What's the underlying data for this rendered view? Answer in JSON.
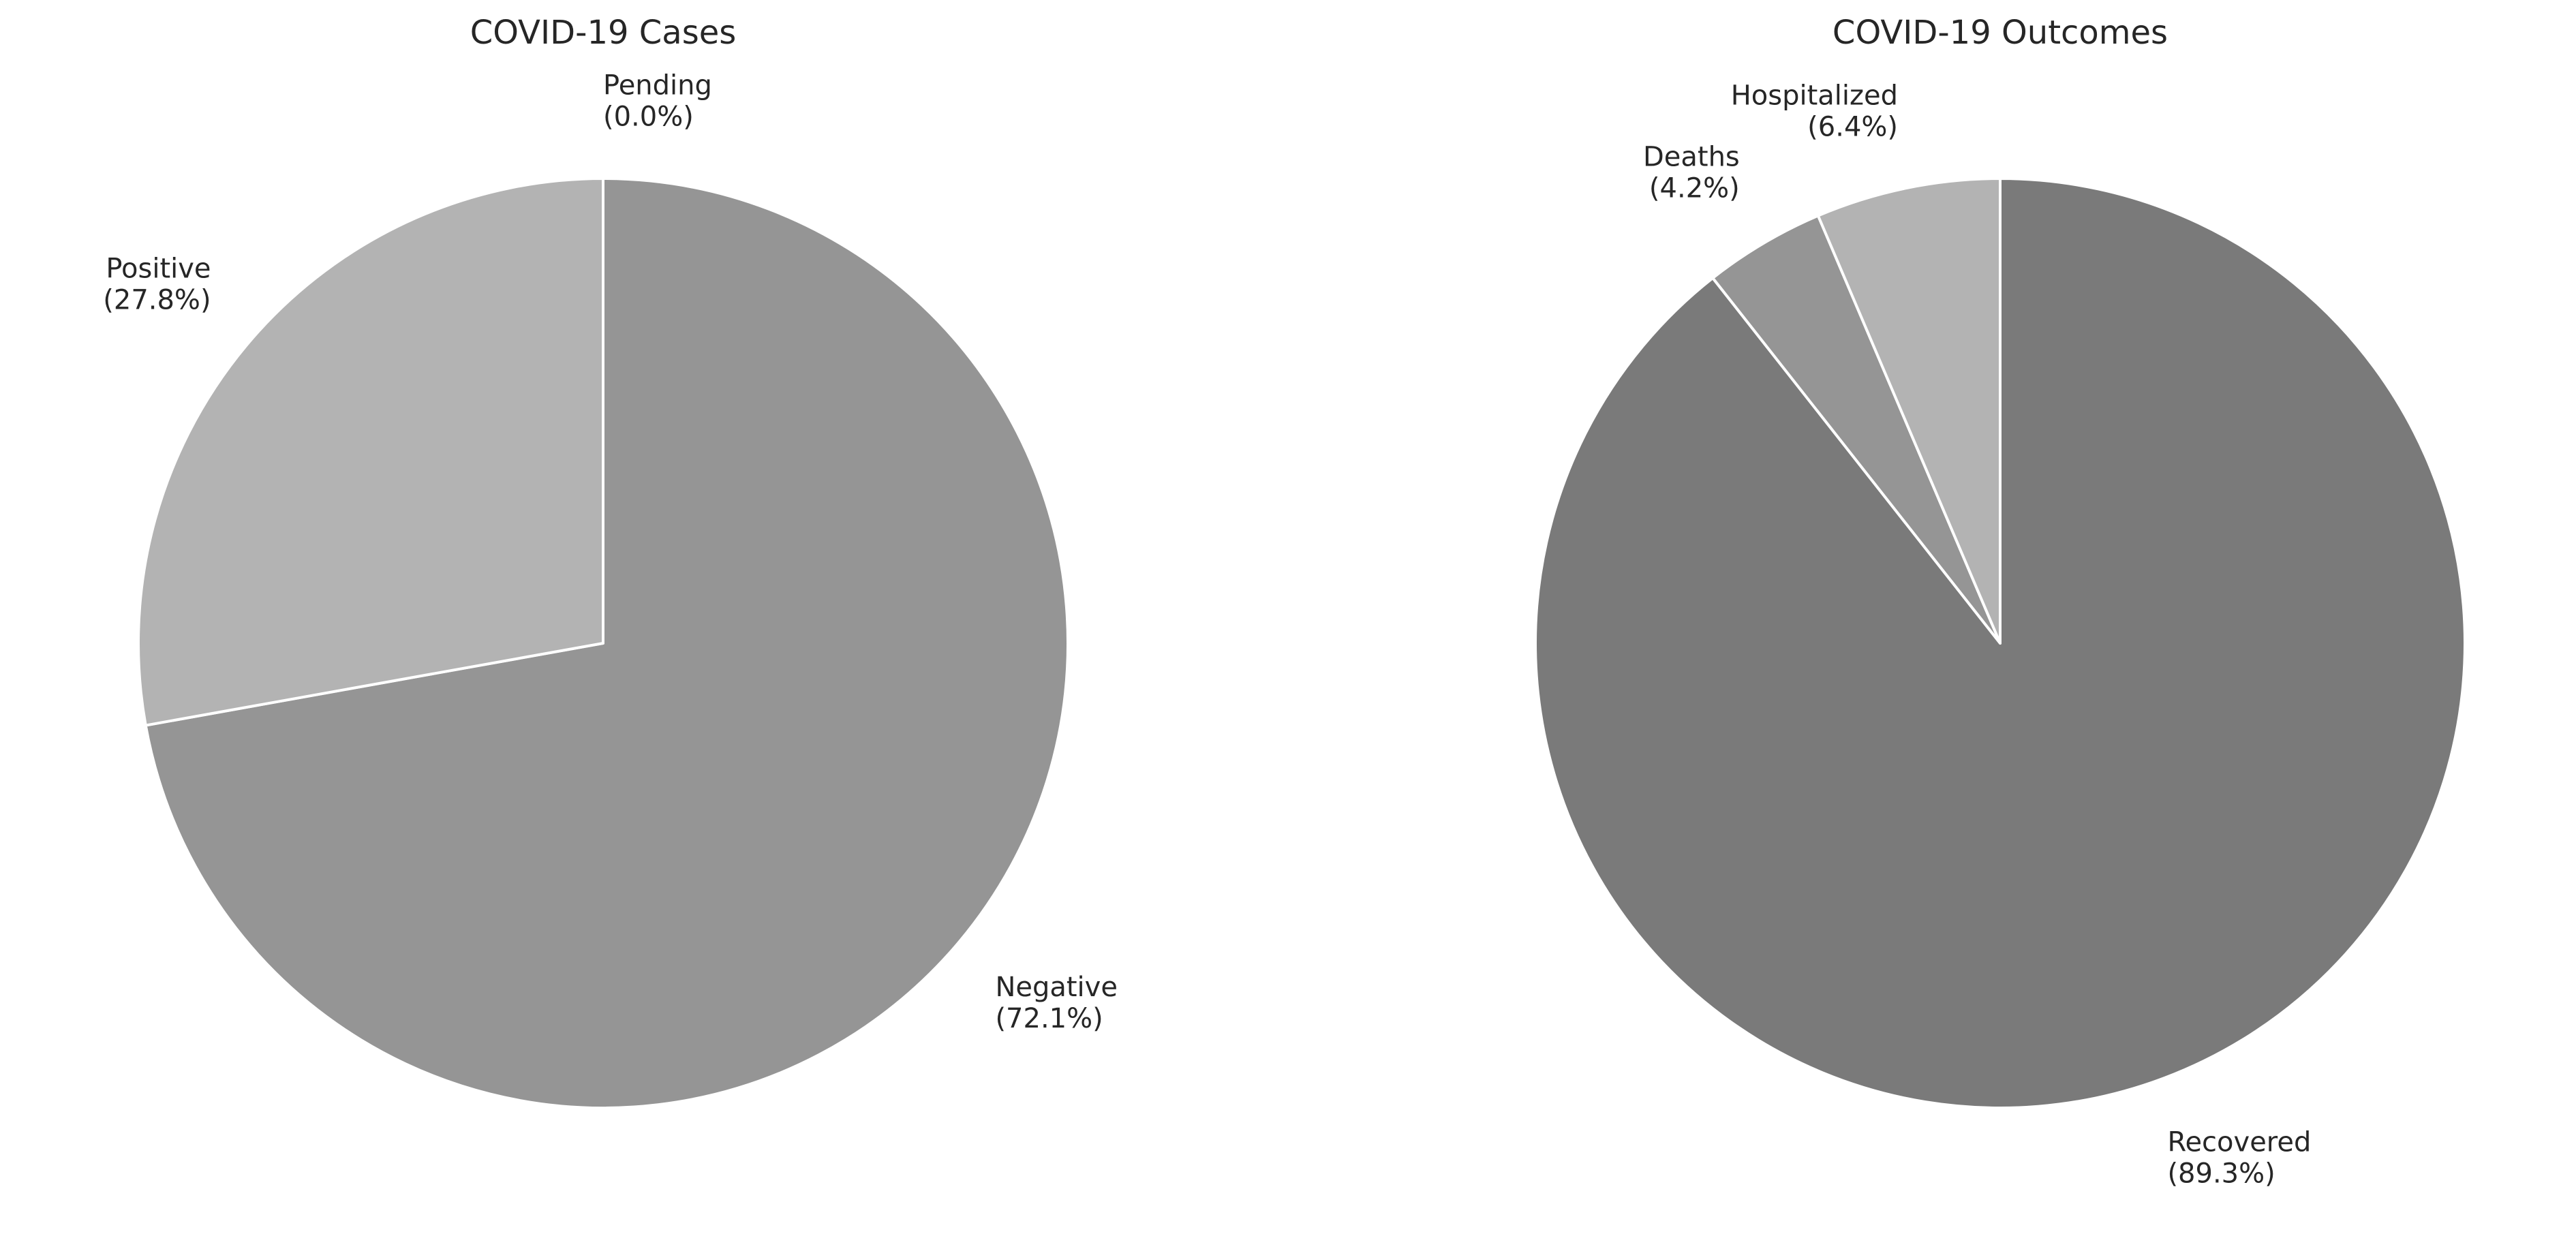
{
  "chart_data": [
    {
      "type": "pie",
      "title": "COVID-19 Cases",
      "start_angle_deg": 90,
      "direction": "clockwise",
      "slices": [
        {
          "label": "Pending",
          "value": 0.0,
          "pct_label": "(0.0%)",
          "color": "#d0d0d0"
        },
        {
          "label": "Negative",
          "value": 72.1,
          "pct_label": "(72.1%)",
          "color": "#959595"
        },
        {
          "label": "Positive",
          "value": 27.8,
          "pct_label": "(27.8%)",
          "color": "#b3b3b3"
        }
      ]
    },
    {
      "type": "pie",
      "title": "COVID-19 Outcomes",
      "start_angle_deg": 90,
      "direction": "clockwise",
      "slices": [
        {
          "label": "Recovered",
          "value": 89.3,
          "pct_label": "(89.3%)",
          "color": "#7a7a7a"
        },
        {
          "label": "Deaths",
          "value": 4.2,
          "pct_label": "(4.2%)",
          "color": "#959595"
        },
        {
          "label": "Hospitalized",
          "value": 6.4,
          "pct_label": "(6.4%)",
          "color": "#b3b3b3"
        }
      ]
    }
  ]
}
